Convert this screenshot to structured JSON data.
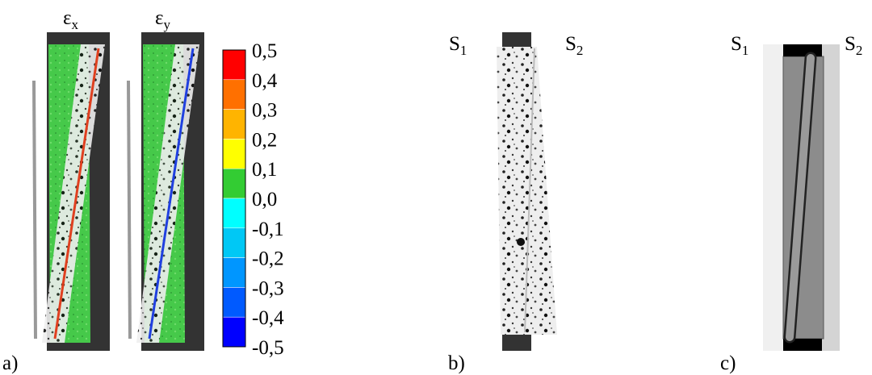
{
  "panel_a": {
    "label": "a)",
    "maps": [
      {
        "symbol": "ε",
        "subscript": "x"
      },
      {
        "symbol": "ε",
        "subscript": "y"
      }
    ],
    "colorbar": {
      "labels": [
        "0,5",
        "0,4",
        "0,3",
        "0,2",
        "0,1",
        "0,0",
        "-0,1",
        "-0,2",
        "-0,3",
        "-0,4",
        "-0,5"
      ],
      "colors": [
        "#ff0000",
        "#ff7000",
        "#ffb400",
        "#ffff00",
        "#33cc33",
        "#00ffff",
        "#00c8f5",
        "#0096ff",
        "#005aff",
        "#0000ff"
      ]
    }
  },
  "panel_b": {
    "label": "b)",
    "sides": [
      {
        "letter": "S",
        "subscript": "1"
      },
      {
        "letter": "S",
        "subscript": "2"
      }
    ]
  },
  "panel_c": {
    "label": "c)",
    "sides": [
      {
        "letter": "S",
        "subscript": "1"
      },
      {
        "letter": "S",
        "subscript": "2"
      }
    ]
  }
}
